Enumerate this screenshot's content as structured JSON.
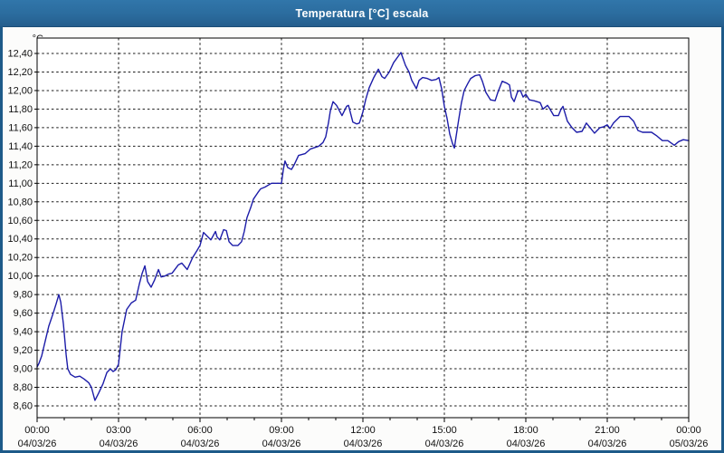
{
  "window": {
    "title": "Temperatura [°C] escala"
  },
  "colors": {
    "titlebar": "#2B6C9E",
    "title_text": "#FFFFFF",
    "window_border": "#1D5A89",
    "background": "#FCFCFB",
    "plot_background": "#FFFFFF",
    "line": "#1C1CA8",
    "grid": "#1A1A1A",
    "axis": "#000000",
    "label_text": "#111111"
  },
  "chart_data": {
    "type": "line",
    "title": "Temperatura [°C] escala",
    "ylabel": "°C",
    "xlabel": "",
    "ylim": [
      8.6,
      12.4
    ],
    "xlim_hours": [
      0,
      24
    ],
    "grid": "dashed",
    "legend": "none",
    "y_ticks": [
      {
        "value": 12.4,
        "label": "12,40"
      },
      {
        "value": 12.2,
        "label": "12,20"
      },
      {
        "value": 12.0,
        "label": "12,00"
      },
      {
        "value": 11.8,
        "label": "11,80"
      },
      {
        "value": 11.6,
        "label": "11,60"
      },
      {
        "value": 11.4,
        "label": "11,40"
      },
      {
        "value": 11.2,
        "label": "11,20"
      },
      {
        "value": 11.0,
        "label": "11,00"
      },
      {
        "value": 10.8,
        "label": "10,80"
      },
      {
        "value": 10.6,
        "label": "10,60"
      },
      {
        "value": 10.4,
        "label": "10,40"
      },
      {
        "value": 10.2,
        "label": "10,20"
      },
      {
        "value": 10.0,
        "label": "10,00"
      },
      {
        "value": 9.8,
        "label": "9,80"
      },
      {
        "value": 9.6,
        "label": "9,60"
      },
      {
        "value": 9.4,
        "label": "9,40"
      },
      {
        "value": 9.2,
        "label": "9,20"
      },
      {
        "value": 9.0,
        "label": "9,00"
      },
      {
        "value": 8.8,
        "label": "8,80"
      },
      {
        "value": 8.6,
        "label": "8,60"
      }
    ],
    "x_ticks": [
      {
        "hour": 0,
        "time": "00:00",
        "date": "04/03/26"
      },
      {
        "hour": 3,
        "time": "03:00",
        "date": "04/03/26"
      },
      {
        "hour": 6,
        "time": "06:00",
        "date": "04/03/26"
      },
      {
        "hour": 9,
        "time": "09:00",
        "date": "04/03/26"
      },
      {
        "hour": 12,
        "time": "12:00",
        "date": "04/03/26"
      },
      {
        "hour": 15,
        "time": "15:00",
        "date": "04/03/26"
      },
      {
        "hour": 18,
        "time": "18:00",
        "date": "04/03/26"
      },
      {
        "hour": 21,
        "time": "21:00",
        "date": "04/03/26"
      },
      {
        "hour": 24,
        "time": "00:00",
        "date": "05/03/26"
      }
    ],
    "series": [
      {
        "name": "Temperatura",
        "color": "#1C1CA8",
        "points": [
          [
            0.0,
            9.02
          ],
          [
            0.07,
            9.06
          ],
          [
            0.17,
            9.14
          ],
          [
            0.3,
            9.3
          ],
          [
            0.43,
            9.46
          ],
          [
            0.57,
            9.58
          ],
          [
            0.7,
            9.7
          ],
          [
            0.8,
            9.8
          ],
          [
            0.87,
            9.72
          ],
          [
            0.97,
            9.48
          ],
          [
            1.07,
            9.15
          ],
          [
            1.13,
            9.0
          ],
          [
            1.23,
            8.94
          ],
          [
            1.4,
            8.91
          ],
          [
            1.57,
            8.92
          ],
          [
            1.73,
            8.89
          ],
          [
            1.9,
            8.85
          ],
          [
            2.0,
            8.8
          ],
          [
            2.13,
            8.66
          ],
          [
            2.27,
            8.74
          ],
          [
            2.43,
            8.84
          ],
          [
            2.57,
            8.96
          ],
          [
            2.7,
            9.0
          ],
          [
            2.8,
            8.97
          ],
          [
            2.9,
            8.99
          ],
          [
            3.0,
            9.05
          ],
          [
            3.13,
            9.4
          ],
          [
            3.3,
            9.64
          ],
          [
            3.47,
            9.71
          ],
          [
            3.63,
            9.74
          ],
          [
            3.77,
            9.92
          ],
          [
            3.87,
            10.03
          ],
          [
            3.97,
            10.11
          ],
          [
            4.07,
            9.94
          ],
          [
            4.2,
            9.88
          ],
          [
            4.33,
            9.96
          ],
          [
            4.47,
            10.07
          ],
          [
            4.57,
            9.99
          ],
          [
            4.7,
            10.0
          ],
          [
            4.83,
            10.02
          ],
          [
            4.97,
            10.03
          ],
          [
            5.2,
            10.12
          ],
          [
            5.33,
            10.14
          ],
          [
            5.53,
            10.07
          ],
          [
            5.73,
            10.2
          ],
          [
            5.9,
            10.28
          ],
          [
            6.0,
            10.33
          ],
          [
            6.13,
            10.47
          ],
          [
            6.3,
            10.42
          ],
          [
            6.4,
            10.39
          ],
          [
            6.57,
            10.48
          ],
          [
            6.63,
            10.42
          ],
          [
            6.73,
            10.39
          ],
          [
            6.87,
            10.5
          ],
          [
            6.97,
            10.49
          ],
          [
            7.07,
            10.37
          ],
          [
            7.2,
            10.33
          ],
          [
            7.4,
            10.33
          ],
          [
            7.53,
            10.37
          ],
          [
            7.63,
            10.48
          ],
          [
            7.73,
            10.63
          ],
          [
            7.87,
            10.74
          ],
          [
            7.97,
            10.83
          ],
          [
            8.13,
            10.9
          ],
          [
            8.23,
            10.94
          ],
          [
            8.4,
            10.96
          ],
          [
            8.63,
            11.0
          ],
          [
            9.0,
            11.0
          ],
          [
            9.07,
            11.15
          ],
          [
            9.13,
            11.24
          ],
          [
            9.23,
            11.17
          ],
          [
            9.37,
            11.15
          ],
          [
            9.47,
            11.2
          ],
          [
            9.63,
            11.3
          ],
          [
            9.87,
            11.32
          ],
          [
            10.07,
            11.37
          ],
          [
            10.37,
            11.4
          ],
          [
            10.53,
            11.44
          ],
          [
            10.63,
            11.5
          ],
          [
            10.73,
            11.65
          ],
          [
            10.8,
            11.78
          ],
          [
            10.9,
            11.88
          ],
          [
            11.03,
            11.84
          ],
          [
            11.23,
            11.73
          ],
          [
            11.4,
            11.83
          ],
          [
            11.47,
            11.84
          ],
          [
            11.63,
            11.66
          ],
          [
            11.77,
            11.64
          ],
          [
            11.87,
            11.65
          ],
          [
            12.0,
            11.77
          ],
          [
            12.1,
            11.9
          ],
          [
            12.23,
            12.03
          ],
          [
            12.4,
            12.14
          ],
          [
            12.57,
            12.23
          ],
          [
            12.7,
            12.15
          ],
          [
            12.8,
            12.13
          ],
          [
            12.97,
            12.2
          ],
          [
            13.13,
            12.3
          ],
          [
            13.3,
            12.37
          ],
          [
            13.4,
            12.41
          ],
          [
            13.57,
            12.27
          ],
          [
            13.7,
            12.2
          ],
          [
            13.8,
            12.11
          ],
          [
            13.97,
            12.02
          ],
          [
            14.07,
            12.11
          ],
          [
            14.2,
            12.14
          ],
          [
            14.37,
            12.13
          ],
          [
            14.53,
            12.11
          ],
          [
            14.7,
            12.12
          ],
          [
            14.8,
            12.14
          ],
          [
            14.9,
            12.02
          ],
          [
            15.0,
            11.83
          ],
          [
            15.1,
            11.7
          ],
          [
            15.2,
            11.53
          ],
          [
            15.3,
            11.43
          ],
          [
            15.37,
            11.38
          ],
          [
            15.43,
            11.5
          ],
          [
            15.53,
            11.69
          ],
          [
            15.63,
            11.87
          ],
          [
            15.73,
            12.0
          ],
          [
            15.87,
            12.08
          ],
          [
            15.97,
            12.13
          ],
          [
            16.13,
            12.16
          ],
          [
            16.3,
            12.17
          ],
          [
            16.4,
            12.1
          ],
          [
            16.53,
            11.98
          ],
          [
            16.7,
            11.9
          ],
          [
            16.87,
            11.89
          ],
          [
            16.97,
            11.98
          ],
          [
            17.13,
            12.1
          ],
          [
            17.3,
            12.08
          ],
          [
            17.4,
            12.06
          ],
          [
            17.47,
            11.93
          ],
          [
            17.57,
            11.88
          ],
          [
            17.7,
            11.99
          ],
          [
            17.8,
            12.0
          ],
          [
            17.9,
            11.93
          ],
          [
            18.0,
            11.96
          ],
          [
            18.13,
            11.9
          ],
          [
            18.3,
            11.89
          ],
          [
            18.53,
            11.87
          ],
          [
            18.63,
            11.8
          ],
          [
            18.8,
            11.84
          ],
          [
            18.87,
            11.81
          ],
          [
            19.03,
            11.73
          ],
          [
            19.2,
            11.73
          ],
          [
            19.3,
            11.8
          ],
          [
            19.37,
            11.83
          ],
          [
            19.53,
            11.67
          ],
          [
            19.7,
            11.6
          ],
          [
            19.87,
            11.55
          ],
          [
            20.07,
            11.56
          ],
          [
            20.23,
            11.65
          ],
          [
            20.37,
            11.6
          ],
          [
            20.53,
            11.54
          ],
          [
            20.73,
            11.6
          ],
          [
            20.87,
            11.61
          ],
          [
            21.0,
            11.63
          ],
          [
            21.1,
            11.59
          ],
          [
            21.23,
            11.65
          ],
          [
            21.47,
            11.72
          ],
          [
            21.8,
            11.72
          ],
          [
            21.97,
            11.67
          ],
          [
            22.13,
            11.57
          ],
          [
            22.3,
            11.55
          ],
          [
            22.63,
            11.55
          ],
          [
            22.83,
            11.51
          ],
          [
            23.03,
            11.46
          ],
          [
            23.23,
            11.46
          ],
          [
            23.47,
            11.41
          ],
          [
            23.63,
            11.45
          ],
          [
            23.8,
            11.47
          ],
          [
            24.0,
            11.46
          ]
        ]
      }
    ]
  }
}
